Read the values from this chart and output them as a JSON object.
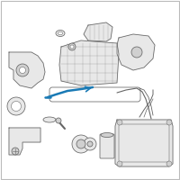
{
  "background_color": "#ffffff",
  "border_color": "#bbbbbb",
  "line_color": "#666666",
  "fill_color": "#e8e8e8",
  "fill_dark": "#d0d0d0",
  "highlight_color": "#1a7ab5",
  "fig_width": 2.0,
  "fig_height": 2.0,
  "dpi": 100
}
